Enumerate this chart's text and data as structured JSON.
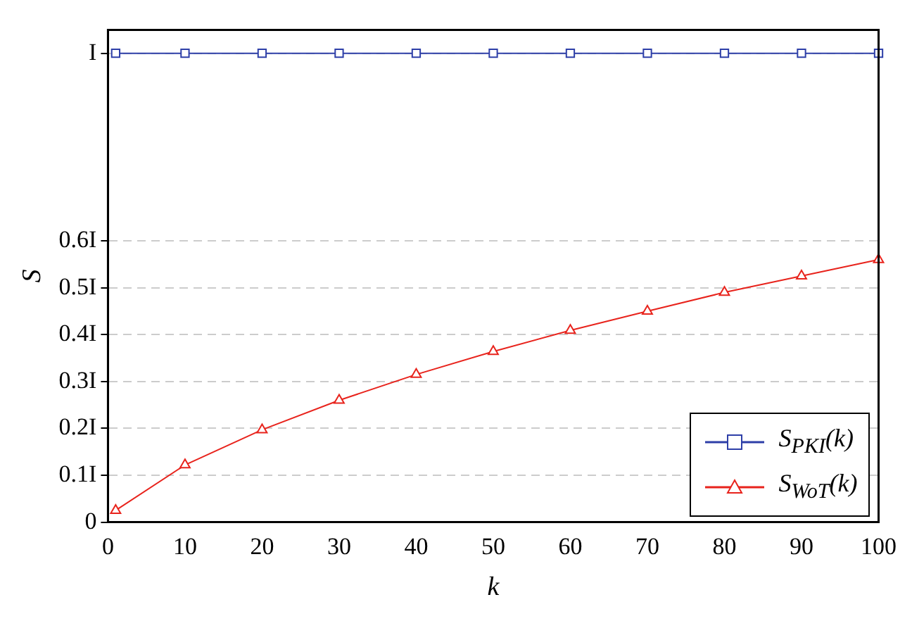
{
  "chart_data": {
    "type": "line",
    "xlabel": "k",
    "ylabel": "S",
    "x": [
      1,
      10,
      20,
      30,
      40,
      50,
      60,
      70,
      80,
      90,
      100
    ],
    "series": [
      {
        "name": "S$_{PKI}$(k)",
        "color": "#2e3fa8",
        "marker": "square",
        "values": [
          1,
          1,
          1,
          1,
          1,
          1,
          1,
          1,
          1,
          1,
          1
        ]
      },
      {
        "name": "S$_{WoT}$(k)",
        "color": "#e8231c",
        "marker": "triangle",
        "values": [
          0.025,
          0.122,
          0.197,
          0.26,
          0.315,
          0.364,
          0.409,
          0.45,
          0.49,
          0.525,
          0.56
        ]
      }
    ],
    "xlim": [
      0,
      100
    ],
    "xticks": [
      0,
      10,
      20,
      30,
      40,
      50,
      60,
      70,
      80,
      90,
      100
    ],
    "ylim": [
      0,
      1.05
    ],
    "yticks": [
      0,
      {
        "value": 0.1,
        "label": "0.1I"
      },
      {
        "value": 0.2,
        "label": "0.2I"
      },
      {
        "value": 0.3,
        "label": "0.3I"
      },
      {
        "value": 0.4,
        "label": "0.4I"
      },
      {
        "value": 0.5,
        "label": "0.5I"
      },
      {
        "value": 0.6,
        "label": "0.6I"
      },
      {
        "value": 1,
        "label": "I"
      }
    ],
    "grid": "y",
    "legend": "bottom right",
    "line_style": "solid"
  }
}
